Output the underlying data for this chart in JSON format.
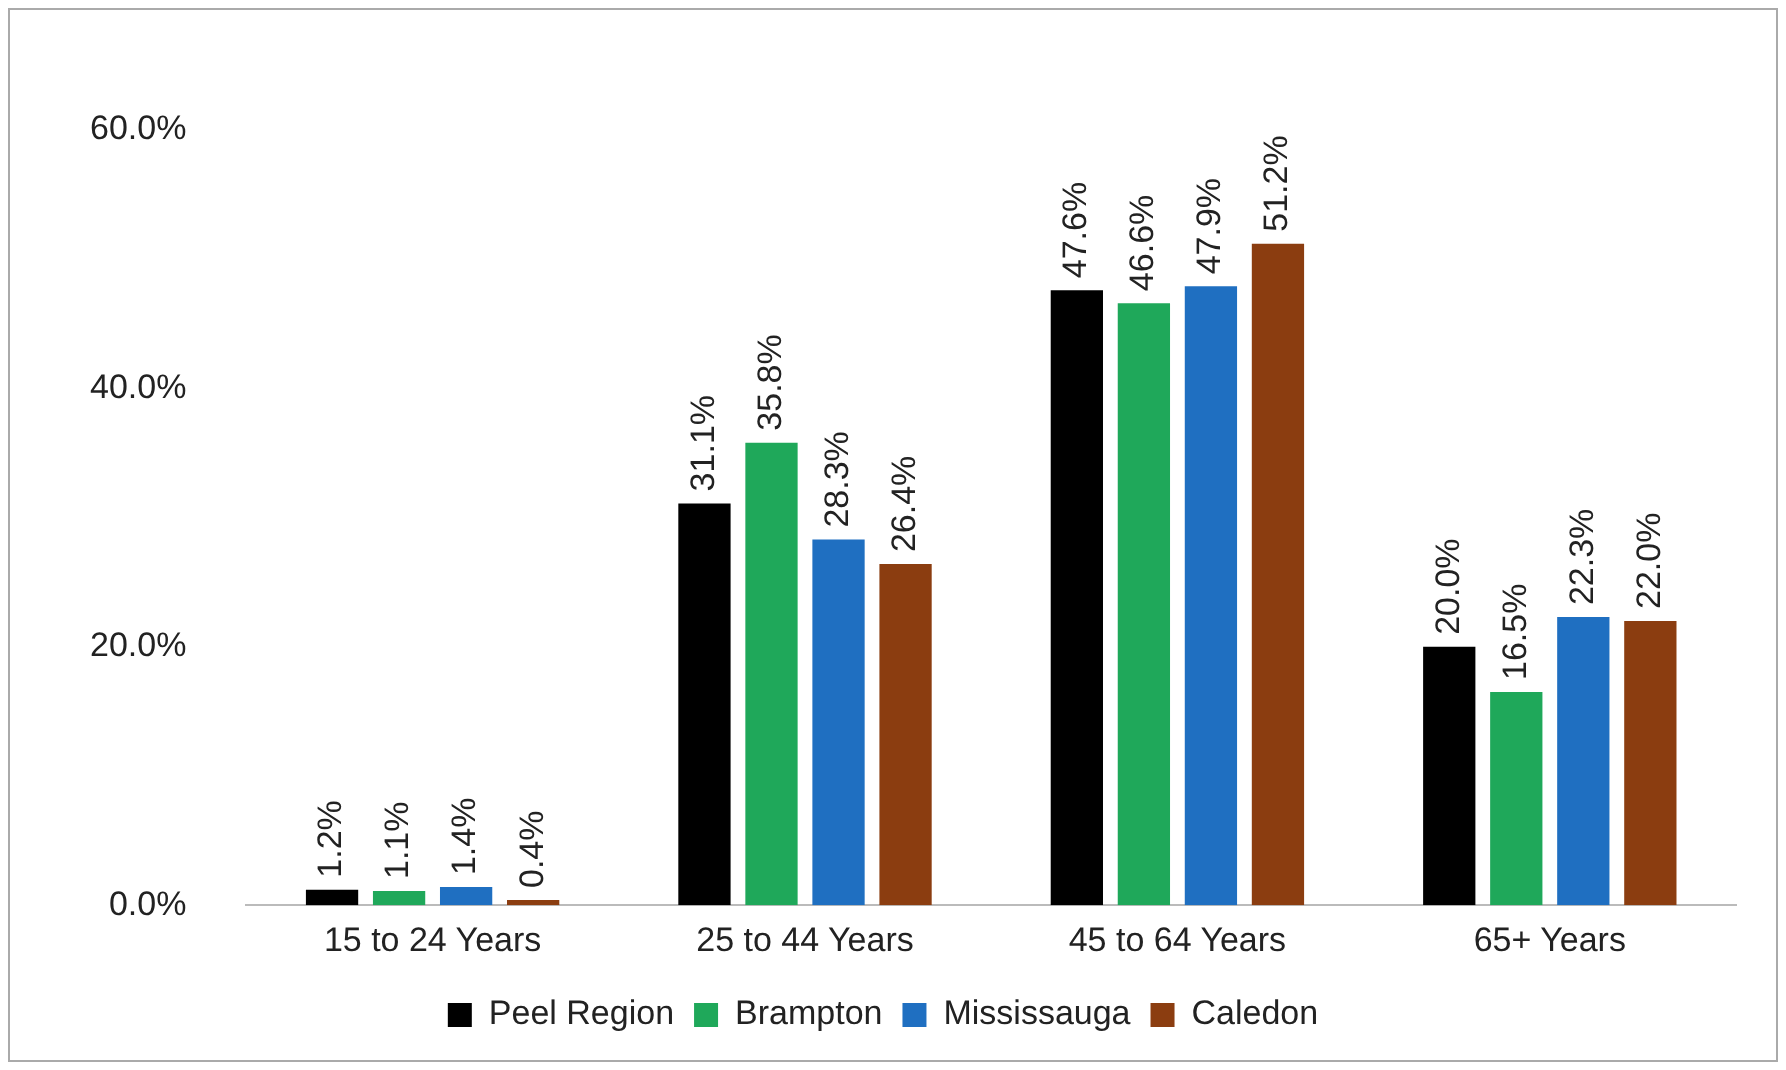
{
  "chart_data": {
    "type": "bar",
    "categories": [
      "15 to 24 Years",
      "25 to 44 Years",
      "45 to 64 Years",
      "65+ Years"
    ],
    "series": [
      {
        "name": "Peel Region",
        "color": "#000000",
        "values": [
          1.2,
          31.1,
          47.6,
          20.0
        ]
      },
      {
        "name": "Brampton",
        "color": "#1fa85a",
        "values": [
          1.1,
          35.8,
          46.6,
          16.5
        ]
      },
      {
        "name": "Mississauga",
        "color": "#1f6fc1",
        "values": [
          1.4,
          28.3,
          47.9,
          22.3
        ]
      },
      {
        "name": "Caledon",
        "color": "#8b3d10",
        "values": [
          0.4,
          26.4,
          51.2,
          22.0
        ]
      }
    ],
    "ylim": [
      0,
      60
    ],
    "yticks": [
      {
        "value": 0,
        "label": "0.0%"
      },
      {
        "value": 20,
        "label": "20.0%"
      },
      {
        "value": 40,
        "label": "40.0%"
      },
      {
        "value": 60,
        "label": "60.0%"
      }
    ],
    "value_labels": [
      [
        "1.2%",
        "31.1%",
        "47.6%",
        "20.0%"
      ],
      [
        "1.1%",
        "35.8%",
        "46.6%",
        "16.5%"
      ],
      [
        "1.4%",
        "28.3%",
        "47.9%",
        "22.3%"
      ],
      [
        "0.4%",
        "26.4%",
        "51.2%",
        "22.0%"
      ]
    ],
    "grid": false,
    "legend": "bottom"
  }
}
